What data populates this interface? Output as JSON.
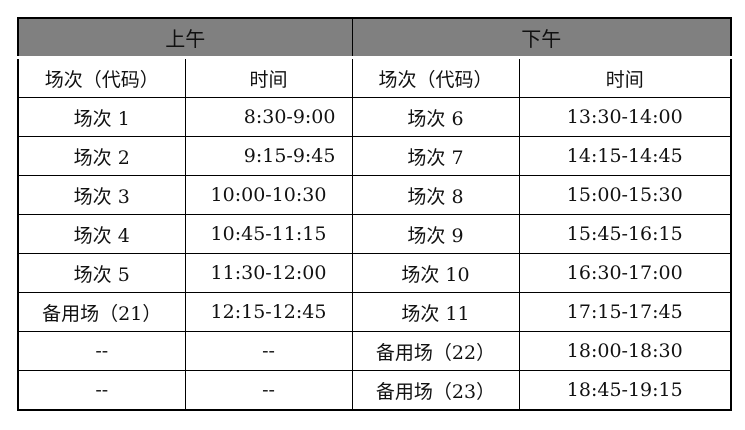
{
  "header": {
    "morning": "上午",
    "afternoon": "下午",
    "header_bg": "#808080"
  },
  "columns": {
    "session": "场次（代码）",
    "time": "时间"
  },
  "rows": [
    {
      "am_session": "场次 1",
      "am_time": "8:30-9:00",
      "pm_session": "场次 6",
      "pm_time": "13:30-14:00"
    },
    {
      "am_session": "场次 2",
      "am_time": "9:15-9:45",
      "pm_session": "场次 7",
      "pm_time": "14:15-14:45"
    },
    {
      "am_session": "场次 3",
      "am_time": "10:00-10:30",
      "pm_session": "场次 8",
      "pm_time": "15:00-15:30"
    },
    {
      "am_session": "场次 4",
      "am_time": "10:45-11:15",
      "pm_session": "场次 9",
      "pm_time": "15:45-16:15"
    },
    {
      "am_session": "场次 5",
      "am_time": "11:30-12:00",
      "pm_session": "场次 10",
      "pm_time": "16:30-17:00"
    },
    {
      "am_session": "备用场（21）",
      "am_time": "12:15-12:45",
      "pm_session": "场次 11",
      "pm_time": "17:15-17:45"
    },
    {
      "am_session": "--",
      "am_time": "--",
      "pm_session": "备用场（22）",
      "pm_time": "18:00-18:30"
    },
    {
      "am_session": "--",
      "am_time": "--",
      "pm_session": "备用场（23）",
      "pm_time": "18:45-19:15"
    }
  ]
}
